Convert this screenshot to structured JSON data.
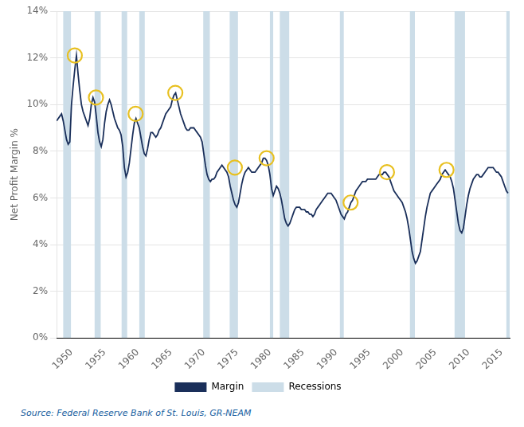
{
  "chart_data": {
    "type": "line",
    "ylabel": "Net Profit Margin %",
    "annotations": [
      {
        "text": "Source: Federal Reserve Bank of St. Louis, GR-NEAM",
        "color": "#1a5fa0"
      }
    ],
    "xlim": [
      1947.75,
      2016.25
    ],
    "xticks": [
      1950,
      1955,
      1960,
      1965,
      1970,
      1975,
      1980,
      1985,
      1990,
      1995,
      2000,
      2005,
      2010,
      2015
    ],
    "ylim": [
      0,
      0.14
    ],
    "yticks": [
      {
        "value": 0,
        "label": "0%"
      },
      {
        "value": 0.02,
        "label": "2%"
      },
      {
        "value": 0.04,
        "label": "4%"
      },
      {
        "value": 0.06,
        "label": "6%"
      },
      {
        "value": 0.08,
        "label": "8%"
      },
      {
        "value": 0.1,
        "label": "10%"
      },
      {
        "value": 0.12,
        "label": "12%"
      },
      {
        "value": 0.14,
        "label": "14%"
      }
    ],
    "grid": "y",
    "legend": "bottom",
    "x": [
      1947.75,
      1948.0,
      1948.25,
      1948.5,
      1948.75,
      1949.0,
      1949.25,
      1949.5,
      1949.75,
      1950.0,
      1950.25,
      1950.5,
      1950.75,
      1951.0,
      1951.25,
      1951.5,
      1951.75,
      1952.0,
      1952.25,
      1952.5,
      1952.75,
      1953.0,
      1953.25,
      1953.5,
      1953.75,
      1954.0,
      1954.25,
      1954.5,
      1954.75,
      1955.0,
      1955.25,
      1955.5,
      1955.75,
      1956.0,
      1956.25,
      1956.5,
      1956.75,
      1957.0,
      1957.25,
      1957.5,
      1957.75,
      1958.0,
      1958.25,
      1958.5,
      1958.75,
      1959.0,
      1959.25,
      1959.5,
      1959.75,
      1960.0,
      1960.25,
      1960.5,
      1960.75,
      1961.0,
      1961.25,
      1961.5,
      1961.75,
      1962.0,
      1962.25,
      1962.5,
      1962.75,
      1963.0,
      1963.25,
      1963.5,
      1963.75,
      1964.0,
      1964.25,
      1964.5,
      1964.75,
      1965.0,
      1965.25,
      1965.5,
      1965.75,
      1966.0,
      1966.25,
      1966.5,
      1966.75,
      1967.0,
      1967.25,
      1967.5,
      1967.75,
      1968.0,
      1968.25,
      1968.5,
      1968.75,
      1969.0,
      1969.25,
      1969.5,
      1969.75,
      1970.0,
      1970.25,
      1970.5,
      1970.75,
      1971.0,
      1971.25,
      1971.5,
      1971.75,
      1972.0,
      1972.25,
      1972.5,
      1972.75,
      1973.0,
      1973.25,
      1973.5,
      1973.75,
      1974.0,
      1974.25,
      1974.5,
      1974.75,
      1975.0,
      1975.25,
      1975.5,
      1975.75,
      1976.0,
      1976.25,
      1976.5,
      1976.75,
      1977.0,
      1977.25,
      1977.5,
      1977.75,
      1978.0,
      1978.25,
      1978.5,
      1978.75,
      1979.0,
      1979.25,
      1979.5,
      1979.75,
      1980.0,
      1980.25,
      1980.5,
      1980.75,
      1981.0,
      1981.25,
      1981.5,
      1981.75,
      1982.0,
      1982.25,
      1982.5,
      1982.75,
      1983.0,
      1983.25,
      1983.5,
      1983.75,
      1984.0,
      1984.25,
      1984.5,
      1984.75,
      1985.0,
      1985.25,
      1985.5,
      1985.75,
      1986.0,
      1986.25,
      1986.5,
      1986.75,
      1987.0,
      1987.25,
      1987.5,
      1987.75,
      1988.0,
      1988.25,
      1988.5,
      1988.75,
      1989.0,
      1989.25,
      1989.5,
      1989.75,
      1990.0,
      1990.25,
      1990.5,
      1990.75,
      1991.0,
      1991.25,
      1991.5,
      1991.75,
      1992.0,
      1992.25,
      1992.5,
      1992.75,
      1993.0,
      1993.25,
      1993.5,
      1993.75,
      1994.0,
      1994.25,
      1994.5,
      1994.75,
      1995.0,
      1995.25,
      1995.5,
      1995.75,
      1996.0,
      1996.25,
      1996.5,
      1996.75,
      1997.0,
      1997.25,
      1997.5,
      1997.75,
      1998.0,
      1998.25,
      1998.5,
      1998.75,
      1999.0,
      1999.25,
      1999.5,
      1999.75,
      2000.0,
      2000.25,
      2000.5,
      2000.75,
      2001.0,
      2001.25,
      2001.5,
      2001.75,
      2002.0,
      2002.25,
      2002.5,
      2002.75,
      2003.0,
      2003.25,
      2003.5,
      2003.75,
      2004.0,
      2004.25,
      2004.5,
      2004.75,
      2005.0,
      2005.25,
      2005.5,
      2005.75,
      2006.0,
      2006.25,
      2006.5,
      2006.75,
      2007.0,
      2007.25,
      2007.5,
      2007.75,
      2008.0,
      2008.25,
      2008.5,
      2008.75,
      2009.0,
      2009.25,
      2009.5,
      2009.75,
      2010.0,
      2010.25,
      2010.5,
      2010.75,
      2011.0,
      2011.25,
      2011.5,
      2011.75,
      2012.0,
      2012.25,
      2012.5,
      2012.75,
      2013.0,
      2013.25,
      2013.5,
      2013.75,
      2014.0,
      2014.25,
      2014.5,
      2014.75,
      2015.0,
      2015.25,
      2015.5,
      2015.75,
      2016.0
    ],
    "series": [
      {
        "name": "Margin",
        "color": "#1a2f5a",
        "values": [
          0.093,
          0.094,
          0.095,
          0.096,
          0.093,
          0.089,
          0.085,
          0.083,
          0.084,
          0.1,
          0.108,
          0.115,
          0.121,
          0.113,
          0.106,
          0.1,
          0.097,
          0.095,
          0.093,
          0.091,
          0.094,
          0.1,
          0.103,
          0.101,
          0.095,
          0.088,
          0.084,
          0.082,
          0.085,
          0.092,
          0.097,
          0.1,
          0.102,
          0.1,
          0.097,
          0.094,
          0.092,
          0.09,
          0.089,
          0.087,
          0.082,
          0.073,
          0.069,
          0.071,
          0.075,
          0.081,
          0.087,
          0.092,
          0.094,
          0.092,
          0.09,
          0.086,
          0.082,
          0.079,
          0.078,
          0.081,
          0.085,
          0.088,
          0.088,
          0.087,
          0.086,
          0.087,
          0.089,
          0.09,
          0.092,
          0.094,
          0.096,
          0.097,
          0.098,
          0.099,
          0.102,
          0.104,
          0.105,
          0.102,
          0.099,
          0.096,
          0.094,
          0.092,
          0.09,
          0.089,
          0.089,
          0.09,
          0.09,
          0.09,
          0.089,
          0.088,
          0.087,
          0.086,
          0.084,
          0.079,
          0.074,
          0.07,
          0.068,
          0.067,
          0.068,
          0.068,
          0.069,
          0.071,
          0.072,
          0.073,
          0.074,
          0.073,
          0.072,
          0.071,
          0.069,
          0.065,
          0.062,
          0.059,
          0.057,
          0.056,
          0.058,
          0.062,
          0.066,
          0.069,
          0.071,
          0.072,
          0.073,
          0.072,
          0.071,
          0.071,
          0.071,
          0.072,
          0.073,
          0.074,
          0.075,
          0.077,
          0.077,
          0.076,
          0.074,
          0.07,
          0.064,
          0.061,
          0.063,
          0.065,
          0.064,
          0.062,
          0.059,
          0.055,
          0.051,
          0.049,
          0.048,
          0.049,
          0.051,
          0.053,
          0.055,
          0.056,
          0.056,
          0.056,
          0.055,
          0.055,
          0.055,
          0.054,
          0.054,
          0.053,
          0.053,
          0.052,
          0.053,
          0.055,
          0.056,
          0.057,
          0.058,
          0.059,
          0.06,
          0.061,
          0.062,
          0.062,
          0.062,
          0.061,
          0.06,
          0.059,
          0.057,
          0.055,
          0.053,
          0.052,
          0.051,
          0.053,
          0.054,
          0.056,
          0.058,
          0.059,
          0.061,
          0.063,
          0.064,
          0.065,
          0.066,
          0.067,
          0.067,
          0.067,
          0.068,
          0.068,
          0.068,
          0.068,
          0.068,
          0.068,
          0.069,
          0.07,
          0.07,
          0.07,
          0.071,
          0.071,
          0.07,
          0.069,
          0.067,
          0.065,
          0.063,
          0.062,
          0.061,
          0.06,
          0.059,
          0.058,
          0.056,
          0.054,
          0.051,
          0.047,
          0.042,
          0.037,
          0.034,
          0.032,
          0.033,
          0.035,
          0.037,
          0.042,
          0.047,
          0.052,
          0.056,
          0.059,
          0.062,
          0.063,
          0.064,
          0.065,
          0.066,
          0.067,
          0.068,
          0.07,
          0.071,
          0.072,
          0.071,
          0.07,
          0.069,
          0.067,
          0.064,
          0.059,
          0.054,
          0.049,
          0.046,
          0.045,
          0.047,
          0.052,
          0.057,
          0.061,
          0.064,
          0.066,
          0.068,
          0.069,
          0.07,
          0.07,
          0.069,
          0.069,
          0.07,
          0.071,
          0.072,
          0.073,
          0.073,
          0.073,
          0.073,
          0.072,
          0.071,
          0.071,
          0.07,
          0.069,
          0.067,
          0.065,
          0.063,
          0.062
        ]
      }
    ],
    "bands": {
      "name": "Recessions",
      "color": "#ccdde8",
      "ranges": [
        [
          1948.75,
          1949.92
        ],
        [
          1953.5,
          1954.42
        ],
        [
          1957.58,
          1958.42
        ],
        [
          1960.25,
          1961.08
        ],
        [
          1969.92,
          1970.92
        ],
        [
          1973.92,
          1975.17
        ],
        [
          1980.0,
          1980.5
        ],
        [
          1981.5,
          1982.92
        ],
        [
          1990.58,
          1991.17
        ],
        [
          2001.17,
          2001.92
        ],
        [
          2007.92,
          2009.5
        ],
        [
          2015.75,
          2016.25
        ]
      ]
    },
    "circles": {
      "color": "#e8c020",
      "points": [
        [
          1950.5,
          0.121
        ],
        [
          1953.7,
          0.103
        ],
        [
          1959.7,
          0.096
        ],
        [
          1965.7,
          0.105
        ],
        [
          1974.7,
          0.073
        ],
        [
          1979.5,
          0.077
        ],
        [
          1992.2,
          0.058
        ],
        [
          1997.7,
          0.071
        ],
        [
          2006.7,
          0.072
        ]
      ]
    }
  }
}
